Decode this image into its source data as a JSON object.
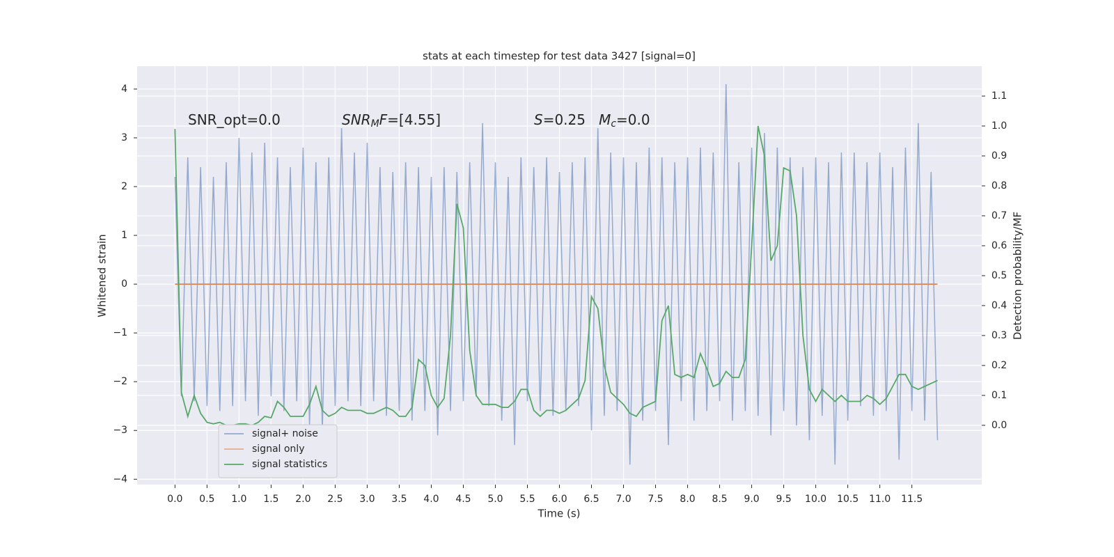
{
  "chart_data": {
    "type": "line",
    "title": "stats at each timestep for test data 3427 [signal=0]",
    "x_label": "Time (s)",
    "y_label": "Whitened strain",
    "y2_label": "Detection probability/MF",
    "annotations": [
      {
        "parts": [
          {
            "text": "SNR_opt=0.0",
            "style": "normal"
          }
        ]
      },
      {
        "parts": [
          {
            "text": "SNR",
            "style": "italic"
          },
          {
            "text": "M",
            "style": "sub"
          },
          {
            "text": "F",
            "style": "italic"
          },
          {
            "text": "=[4.55]",
            "style": "normal"
          }
        ]
      },
      {
        "parts": [
          {
            "text": "S",
            "style": "italic"
          },
          {
            "text": "=0.25   ",
            "style": "normal"
          },
          {
            "text": "M",
            "style": "italic"
          },
          {
            "text": "c",
            "style": "sub"
          },
          {
            "text": "=0.0",
            "style": "normal"
          }
        ]
      }
    ],
    "grid": true,
    "legend": "lower left",
    "xlim": [
      -0.59,
      12.59
    ],
    "ylim": [
      -4.11,
      4.47
    ],
    "y2lim": [
      -0.198,
      1.2
    ],
    "xticks": [
      {
        "value": 0,
        "label": "0.0"
      },
      {
        "value": 0.5,
        "label": "0.5"
      },
      {
        "value": 1,
        "label": "1.0"
      },
      {
        "value": 1.5,
        "label": "1.5"
      },
      {
        "value": 2,
        "label": "2.0"
      },
      {
        "value": 2.5,
        "label": "2.5"
      },
      {
        "value": 3,
        "label": "3.0"
      },
      {
        "value": 3.5,
        "label": "3.5"
      },
      {
        "value": 4,
        "label": "4.0"
      },
      {
        "value": 4.5,
        "label": "4.5"
      },
      {
        "value": 5,
        "label": "5.0"
      },
      {
        "value": 5.5,
        "label": "5.5"
      },
      {
        "value": 6,
        "label": "6.0"
      },
      {
        "value": 6.5,
        "label": "6.5"
      },
      {
        "value": 7,
        "label": "7.0"
      },
      {
        "value": 7.5,
        "label": "7.5"
      },
      {
        "value": 8,
        "label": "8.0"
      },
      {
        "value": 8.5,
        "label": "8.5"
      },
      {
        "value": 9,
        "label": "9.0"
      },
      {
        "value": 9.5,
        "label": "9.5"
      },
      {
        "value": 10,
        "label": "10.0"
      },
      {
        "value": 10.5,
        "label": "10.5"
      },
      {
        "value": 11,
        "label": "11.0"
      },
      {
        "value": 11.5,
        "label": "11.5"
      }
    ],
    "yticks": [
      4,
      3,
      2,
      1,
      0,
      {
        "value": -1,
        "label": "−1"
      },
      {
        "value": -2,
        "label": "−2"
      },
      {
        "value": -3,
        "label": "−3"
      },
      {
        "value": -4,
        "label": "−4"
      }
    ],
    "y2ticks": [
      {
        "value": 0,
        "label": "0.0"
      },
      {
        "value": 0.1,
        "label": "0.1"
      },
      {
        "value": 0.2,
        "label": "0.2"
      },
      {
        "value": 0.3,
        "label": "0.3"
      },
      {
        "value": 0.4,
        "label": "0.4"
      },
      {
        "value": 0.5,
        "label": "0.5"
      },
      {
        "value": 0.6,
        "label": "0.6"
      },
      {
        "value": 0.7,
        "label": "0.7"
      },
      {
        "value": 0.8,
        "label": "0.8"
      },
      {
        "value": 0.9,
        "label": "0.9"
      },
      {
        "value": 1,
        "label": "1.0"
      },
      {
        "value": 1.1,
        "label": "1.1"
      }
    ],
    "x": [
      0,
      0.1,
      0.2,
      0.3,
      0.4,
      0.5,
      0.6,
      0.7,
      0.8,
      0.9,
      1,
      1.1,
      1.2,
      1.3,
      1.4,
      1.5,
      1.6,
      1.7,
      1.8,
      1.9,
      2,
      2.1,
      2.2,
      2.3,
      2.4,
      2.5,
      2.6,
      2.7,
      2.8,
      2.9,
      3,
      3.1,
      3.2,
      3.3,
      3.4,
      3.5,
      3.6,
      3.7,
      3.8,
      3.9,
      4,
      4.1,
      4.2,
      4.3,
      4.4,
      4.5,
      4.6,
      4.7,
      4.8,
      4.9,
      5,
      5.1,
      5.2,
      5.3,
      5.4,
      5.5,
      5.6,
      5.7,
      5.8,
      5.9,
      6,
      6.1,
      6.2,
      6.3,
      6.4,
      6.5,
      6.6,
      6.7,
      6.8,
      6.9,
      7,
      7.1,
      7.2,
      7.3,
      7.4,
      7.5,
      7.6,
      7.7,
      7.8,
      7.9,
      8,
      8.1,
      8.2,
      8.3,
      8.4,
      8.5,
      8.6,
      8.7,
      8.8,
      8.9,
      9,
      9.1,
      9.2,
      9.3,
      9.4,
      9.5,
      9.6,
      9.7,
      9.8,
      9.9,
      10,
      10.1,
      10.2,
      10.3,
      10.4,
      10.5,
      10.6,
      10.7,
      10.8,
      10.9,
      11,
      11.1,
      11.2,
      11.3,
      11.4,
      11.5,
      11.6,
      11.7,
      11.8,
      11.9
    ],
    "series": [
      {
        "name": "signal+ noise",
        "color": "#4c72b0",
        "values": [
          2.2,
          -2.3,
          2.6,
          -2.4,
          2.4,
          -2.5,
          2.2,
          -2.6,
          2.5,
          -2.5,
          3.0,
          -2.4,
          2.7,
          -2.7,
          2.9,
          -2.3,
          2.6,
          -2.6,
          2.4,
          -2.4,
          2.8,
          -2.9,
          2.5,
          -3.0,
          2.6,
          -2.5,
          3.2,
          -2.4,
          2.7,
          -2.5,
          2.9,
          -2.4,
          2.4,
          -2.7,
          2.3,
          -2.6,
          2.5,
          -2.8,
          2.4,
          -2.6,
          2.2,
          -3.1,
          2.4,
          -2.6,
          2.3,
          -2.4,
          2.5,
          -2.3,
          3.3,
          -2.5,
          2.5,
          -2.8,
          2.2,
          -3.3,
          2.6,
          -2.4,
          2.4,
          -2.6,
          2.6,
          -2.7,
          2.3,
          -2.6,
          2.5,
          -2.5,
          2.6,
          -3.0,
          3.2,
          -2.7,
          2.7,
          -2.6,
          2.6,
          -3.7,
          2.5,
          -2.8,
          2.8,
          -2.6,
          2.6,
          -3.3,
          2.5,
          -2.4,
          2.6,
          -2.8,
          2.8,
          -2.6,
          2.7,
          -2.4,
          4.1,
          -2.8,
          2.5,
          -2.6,
          2.8,
          -2.7,
          3.1,
          -3.1,
          2.8,
          -2.6,
          2.6,
          -2.9,
          2.4,
          -3.2,
          2.6,
          -2.7,
          2.5,
          -3.7,
          2.7,
          -2.8,
          2.7,
          -2.5,
          2.5,
          -2.7,
          2.7,
          -2.6,
          2.4,
          -3.6,
          2.8,
          -2.6,
          3.3,
          -2.8,
          2.3,
          -3.2
        ]
      },
      {
        "name": "signal only",
        "color": "#dd8452",
        "values": [
          0,
          0,
          0,
          0,
          0,
          0,
          0,
          0,
          0,
          0,
          0,
          0,
          0,
          0,
          0,
          0,
          0,
          0,
          0,
          0,
          0,
          0,
          0,
          0,
          0,
          0,
          0,
          0,
          0,
          0,
          0,
          0,
          0,
          0,
          0,
          0,
          0,
          0,
          0,
          0,
          0,
          0,
          0,
          0,
          0,
          0,
          0,
          0,
          0,
          0,
          0,
          0,
          0,
          0,
          0,
          0,
          0,
          0,
          0,
          0,
          0,
          0,
          0,
          0,
          0,
          0,
          0,
          0,
          0,
          0,
          0,
          0,
          0,
          0,
          0,
          0,
          0,
          0,
          0,
          0,
          0,
          0,
          0,
          0,
          0,
          0,
          0,
          0,
          0,
          0,
          0,
          0,
          0,
          0,
          0,
          0,
          0,
          0,
          0,
          0,
          0,
          0,
          0,
          0,
          0,
          0,
          0,
          0,
          0,
          0,
          0,
          0,
          0,
          0,
          0,
          0,
          0,
          0,
          0,
          0
        ]
      },
      {
        "name": "signal statistics",
        "color": "#55a868",
        "axis": "y2",
        "values": [
          0.99,
          0.11,
          0.03,
          0.1,
          0.04,
          0.01,
          0.005,
          0.01,
          0,
          0,
          0.005,
          0.005,
          0,
          0.01,
          0.03,
          0.025,
          0.08,
          0.06,
          0.03,
          0.03,
          0.03,
          0.07,
          0.13,
          0.05,
          0.03,
          0.04,
          0.06,
          0.05,
          0.05,
          0.05,
          0.04,
          0.04,
          0.05,
          0.06,
          0.05,
          0.03,
          0.03,
          0.06,
          0.22,
          0.2,
          0.1,
          0.06,
          0.09,
          0.3,
          0.74,
          0.66,
          0.25,
          0.1,
          0.07,
          0.07,
          0.07,
          0.06,
          0.06,
          0.08,
          0.12,
          0.12,
          0.05,
          0.03,
          0.05,
          0.05,
          0.04,
          0.05,
          0.07,
          0.09,
          0.15,
          0.43,
          0.39,
          0.2,
          0.11,
          0.09,
          0.07,
          0.04,
          0.03,
          0.06,
          0.07,
          0.08,
          0.35,
          0.4,
          0.17,
          0.16,
          0.17,
          0.16,
          0.24,
          0.19,
          0.13,
          0.14,
          0.18,
          0.16,
          0.16,
          0.22,
          0.6,
          1.0,
          0.9,
          0.55,
          0.6,
          0.86,
          0.85,
          0.7,
          0.3,
          0.12,
          0.08,
          0.12,
          0.1,
          0.08,
          0.1,
          0.08,
          0.08,
          0.08,
          0.1,
          0.09,
          0.07,
          0.09,
          0.13,
          0.17,
          0.17,
          0.13,
          0.12,
          0.13,
          0.14,
          0.15
        ]
      }
    ]
  }
}
